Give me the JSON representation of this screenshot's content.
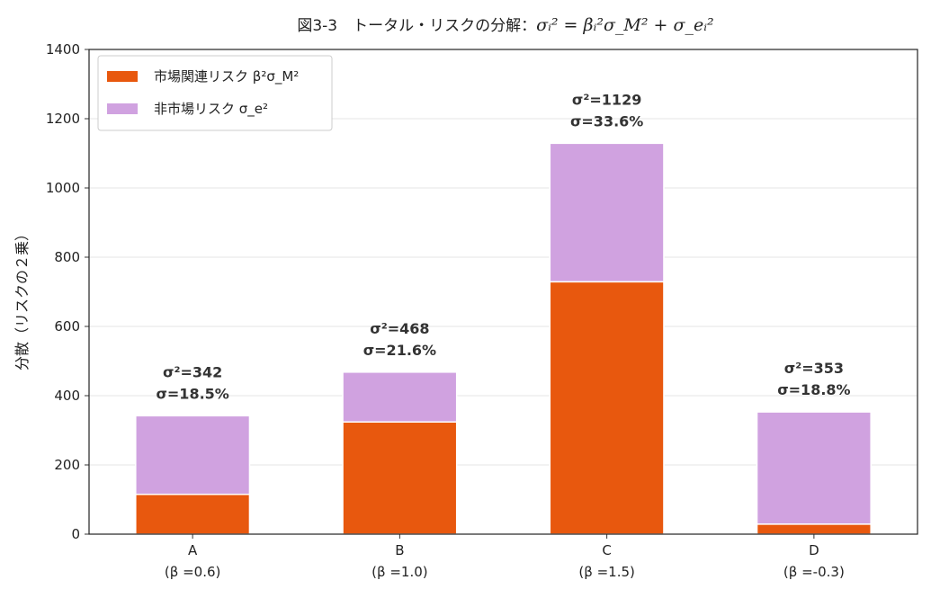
{
  "chart_data": {
    "type": "bar",
    "stacked": true,
    "title": {
      "prefix": "図3-3　トータル・リスクの分解：",
      "formula": "σᵢ² = βᵢ²σ_M² + σ_eᵢ²"
    },
    "xlabel": "",
    "ylabel": "分散（リスクの２乗）",
    "ylim": [
      0,
      1400
    ],
    "yticks": [
      0,
      200,
      400,
      600,
      800,
      1000,
      1200,
      1400
    ],
    "grid": "horizontal",
    "legend_position": "top-left",
    "categories": [
      "A",
      "B",
      "C",
      "D"
    ],
    "category_sublabels": [
      "(β =0.6)",
      "(β =1.0)",
      "(β =1.5)",
      "(β =-0.3)"
    ],
    "series": [
      {
        "name": "市場関連リスク β²σ_M²",
        "values": [
          115,
          324,
          729,
          29
        ],
        "color": "#e8580e"
      },
      {
        "name": "非市場リスク σ_e²",
        "values": [
          227,
          144,
          400,
          324
        ],
        "color": "#d0a2e0"
      }
    ],
    "annotations": [
      {
        "line1": "σ²=342",
        "line2": "σ=18.5%"
      },
      {
        "line1": "σ²=468",
        "line2": "σ=21.6%"
      },
      {
        "line1": "σ²=1129",
        "line2": "σ=33.6%"
      },
      {
        "line1": "σ²=353",
        "line2": "σ=18.8%"
      }
    ]
  }
}
